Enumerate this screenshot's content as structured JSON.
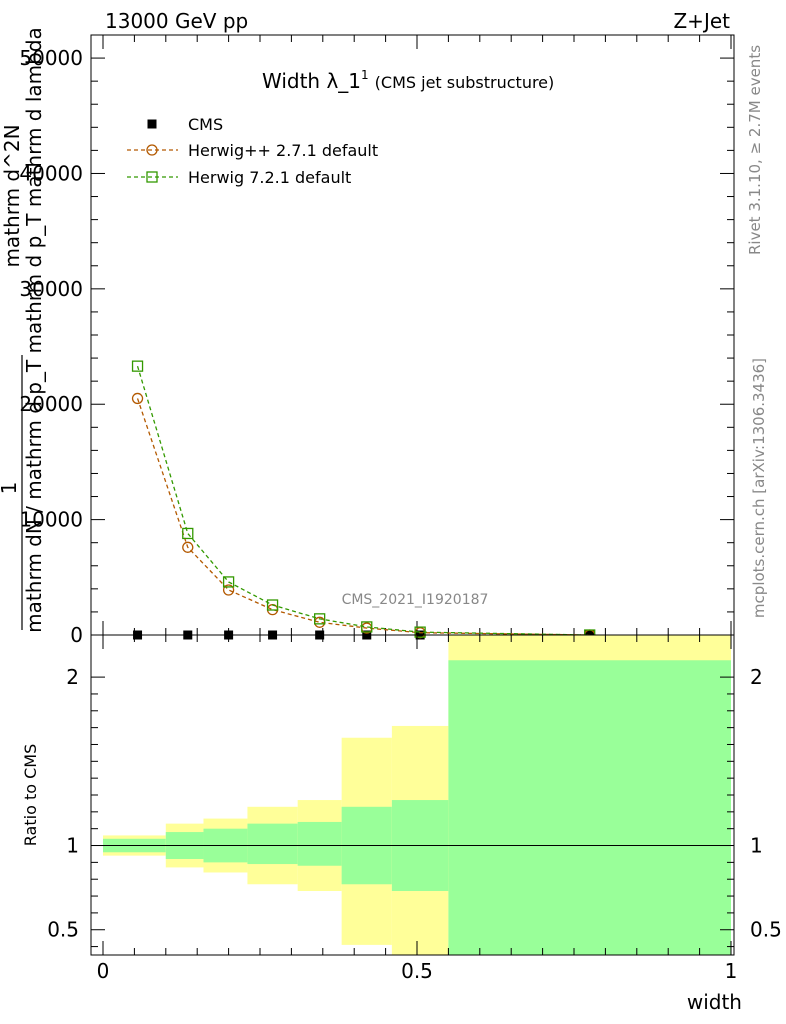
{
  "header": {
    "left": "13000 GeV pp",
    "right": "Z+Jet"
  },
  "side_labels": {
    "rivet": "Rivet 3.1.10, ≥ 2.7M events",
    "mcplots": "mcplots.cern.ch [arXiv:1306.3436]"
  },
  "chart_data": [
    {
      "type": "line",
      "title": "Width λ_1",
      "title_sup": "1",
      "subtitle": "(CMS jet substructure)",
      "watermark": "CMS_2021_I1920187",
      "ylabel": {
        "numerator": "1",
        "denominator": "mathrm dN / mathrm d p_T mathrm d p_T mathrm d lambda",
        "numerator2": "mathrm d^2N",
        "denominator2": "mathrm d p_T mathrm d lambda"
      },
      "ylabel_lines": [
        "1",
        "mathrm dN / mathrm d p_T mathrm d p_T mathrm d lambda",
        "mathrm d^2N"
      ],
      "ylim": [
        0,
        52000
      ],
      "xlim": [
        0,
        1
      ],
      "yticks": [
        0,
        10000,
        20000,
        30000,
        40000,
        50000
      ],
      "ytick_labels": [
        "0",
        "10000",
        "20000",
        "30000",
        "40000",
        "50000"
      ],
      "legend_position": "top-left",
      "series": [
        {
          "name": "CMS",
          "color": "#000000",
          "marker": "filled-square",
          "x": [
            0.055,
            0.135,
            0.2,
            0.27,
            0.345,
            0.42,
            0.505,
            0.775
          ],
          "y": [
            0,
            0,
            0,
            0,
            0,
            0,
            0,
            0
          ]
        },
        {
          "name": "Herwig++ 2.7.1 default",
          "color": "#b35900",
          "marker": "open-circle",
          "x": [
            0.055,
            0.135,
            0.2,
            0.27,
            0.345,
            0.42,
            0.505,
            0.775
          ],
          "y": [
            20500,
            7600,
            3900,
            2200,
            1100,
            600,
            200,
            0
          ]
        },
        {
          "name": "Herwig 7.2.1 default",
          "color": "#339900",
          "marker": "open-square",
          "x": [
            0.055,
            0.135,
            0.2,
            0.27,
            0.345,
            0.42,
            0.505,
            0.775
          ],
          "y": [
            23300,
            8800,
            4600,
            2600,
            1400,
            700,
            250,
            0
          ]
        }
      ]
    },
    {
      "type": "area",
      "ylabel": "Ratio to CMS",
      "xlabel": "width",
      "ylim": [
        0.35,
        2.25
      ],
      "xlim": [
        0,
        1
      ],
      "xticks": [
        0,
        0.5,
        1
      ],
      "xtick_labels": [
        "0",
        "0.5",
        "1"
      ],
      "yticks": [
        0.5,
        1,
        2
      ],
      "ytick_labels": [
        "0.5",
        "1",
        "2"
      ],
      "reference_line": 1,
      "bins": [
        {
          "x0": 0.0,
          "x1": 0.1,
          "green_lo": 0.96,
          "green_hi": 1.04,
          "yellow_lo": 0.94,
          "yellow_hi": 1.06
        },
        {
          "x0": 0.1,
          "x1": 0.16,
          "green_lo": 0.92,
          "green_hi": 1.08,
          "yellow_lo": 0.87,
          "yellow_hi": 1.13
        },
        {
          "x0": 0.16,
          "x1": 0.23,
          "green_lo": 0.9,
          "green_hi": 1.1,
          "yellow_lo": 0.84,
          "yellow_hi": 1.16
        },
        {
          "x0": 0.23,
          "x1": 0.31,
          "green_lo": 0.89,
          "green_hi": 1.13,
          "yellow_lo": 0.77,
          "yellow_hi": 1.23
        },
        {
          "x0": 0.31,
          "x1": 0.38,
          "green_lo": 0.88,
          "green_hi": 1.14,
          "yellow_lo": 0.73,
          "yellow_hi": 1.27
        },
        {
          "x0": 0.38,
          "x1": 0.46,
          "green_lo": 0.77,
          "green_hi": 1.23,
          "yellow_lo": 0.41,
          "yellow_hi": 1.64
        },
        {
          "x0": 0.46,
          "x1": 0.55,
          "green_lo": 0.73,
          "green_hi": 1.27,
          "yellow_lo": 0.35,
          "yellow_hi": 1.71
        },
        {
          "x0": 0.55,
          "x1": 1.0,
          "green_lo": 0.35,
          "green_hi": 2.1,
          "yellow_lo": 0.35,
          "yellow_hi": 2.25
        }
      ],
      "colors": {
        "green": "#99ff99",
        "yellow": "#ffff99"
      }
    }
  ]
}
